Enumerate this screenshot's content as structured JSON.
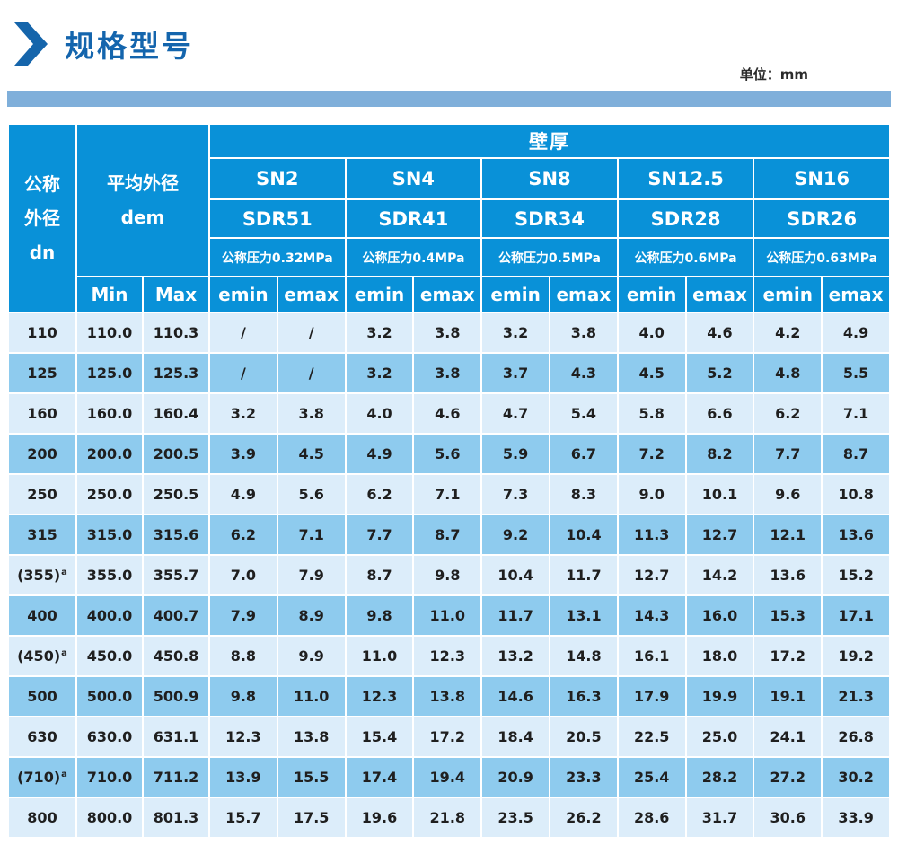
{
  "page": {
    "title": "规格型号",
    "unit_label": "单位：mm"
  },
  "icons": {
    "chevron_right_icon": "chevron-right-icon"
  },
  "colors": {
    "title_blue": "#1465ad",
    "icon_blue": "#1565ab",
    "accent_bar": "#7fafda",
    "header_blue": "#0991d8",
    "header_text": "#ffffff",
    "row_light": "#dcedfa",
    "row_medium": "#8ecbee",
    "text_dark": "#1f1f1f"
  },
  "table": {
    "header": {
      "dn_lines": [
        "公称",
        "外径",
        "dn"
      ],
      "dem_line1": "平均外径",
      "dem_line2": "dem",
      "wall_thickness_label": "壁厚",
      "min_label": "Min",
      "max_label": "Max",
      "emin_label": "emin",
      "emax_label": "emax",
      "sn_groups": [
        {
          "sn": "SN2",
          "sdr": "SDR51",
          "pressure": "公称压力0.32MPa"
        },
        {
          "sn": "SN4",
          "sdr": "SDR41",
          "pressure": "公称压力0.4MPa"
        },
        {
          "sn": "SN8",
          "sdr": "SDR34",
          "pressure": "公称压力0.5MPa"
        },
        {
          "sn": "SN12.5",
          "sdr": "SDR28",
          "pressure": "公称压力0.6MPa"
        },
        {
          "sn": "SN16",
          "sdr": "SDR26",
          "pressure": "公称压力0.63MPa"
        }
      ]
    },
    "rows": [
      {
        "dn": "110",
        "dn_sup": "",
        "min": "110.0",
        "max": "110.3",
        "e": [
          "/",
          "/",
          "3.2",
          "3.8",
          "3.2",
          "3.8",
          "4.0",
          "4.6",
          "4.2",
          "4.9"
        ]
      },
      {
        "dn": "125",
        "dn_sup": "",
        "min": "125.0",
        "max": "125.3",
        "e": [
          "/",
          "/",
          "3.2",
          "3.8",
          "3.7",
          "4.3",
          "4.5",
          "5.2",
          "4.8",
          "5.5"
        ]
      },
      {
        "dn": "160",
        "dn_sup": "",
        "min": "160.0",
        "max": "160.4",
        "e": [
          "3.2",
          "3.8",
          "4.0",
          "4.6",
          "4.7",
          "5.4",
          "5.8",
          "6.6",
          "6.2",
          "7.1"
        ]
      },
      {
        "dn": "200",
        "dn_sup": "",
        "min": "200.0",
        "max": "200.5",
        "e": [
          "3.9",
          "4.5",
          "4.9",
          "5.6",
          "5.9",
          "6.7",
          "7.2",
          "8.2",
          "7.7",
          "8.7"
        ]
      },
      {
        "dn": "250",
        "dn_sup": "",
        "min": "250.0",
        "max": "250.5",
        "e": [
          "4.9",
          "5.6",
          "6.2",
          "7.1",
          "7.3",
          "8.3",
          "9.0",
          "10.1",
          "9.6",
          "10.8"
        ]
      },
      {
        "dn": "315",
        "dn_sup": "",
        "min": "315.0",
        "max": "315.6",
        "e": [
          "6.2",
          "7.1",
          "7.7",
          "8.7",
          "9.2",
          "10.4",
          "11.3",
          "12.7",
          "12.1",
          "13.6"
        ]
      },
      {
        "dn": "(355)",
        "dn_sup": "a",
        "min": "355.0",
        "max": "355.7",
        "e": [
          "7.0",
          "7.9",
          "8.7",
          "9.8",
          "10.4",
          "11.7",
          "12.7",
          "14.2",
          "13.6",
          "15.2"
        ]
      },
      {
        "dn": "400",
        "dn_sup": "",
        "min": "400.0",
        "max": "400.7",
        "e": [
          "7.9",
          "8.9",
          "9.8",
          "11.0",
          "11.7",
          "13.1",
          "14.3",
          "16.0",
          "15.3",
          "17.1"
        ]
      },
      {
        "dn": "(450)",
        "dn_sup": "a",
        "min": "450.0",
        "max": "450.8",
        "e": [
          "8.8",
          "9.9",
          "11.0",
          "12.3",
          "13.2",
          "14.8",
          "16.1",
          "18.0",
          "17.2",
          "19.2"
        ]
      },
      {
        "dn": "500",
        "dn_sup": "",
        "min": "500.0",
        "max": "500.9",
        "e": [
          "9.8",
          "11.0",
          "12.3",
          "13.8",
          "14.6",
          "16.3",
          "17.9",
          "19.9",
          "19.1",
          "21.3"
        ]
      },
      {
        "dn": "630",
        "dn_sup": "",
        "min": "630.0",
        "max": "631.1",
        "e": [
          "12.3",
          "13.8",
          "15.4",
          "17.2",
          "18.4",
          "20.5",
          "22.5",
          "25.0",
          "24.1",
          "26.8"
        ]
      },
      {
        "dn": "(710)",
        "dn_sup": "a",
        "min": "710.0",
        "max": "711.2",
        "e": [
          "13.9",
          "15.5",
          "17.4",
          "19.4",
          "20.9",
          "23.3",
          "25.4",
          "28.2",
          "27.2",
          "30.2"
        ]
      },
      {
        "dn": "800",
        "dn_sup": "",
        "min": "800.0",
        "max": "801.3",
        "e": [
          "15.7",
          "17.5",
          "19.6",
          "21.8",
          "23.5",
          "26.2",
          "28.6",
          "31.7",
          "30.6",
          "33.9"
        ]
      }
    ]
  }
}
